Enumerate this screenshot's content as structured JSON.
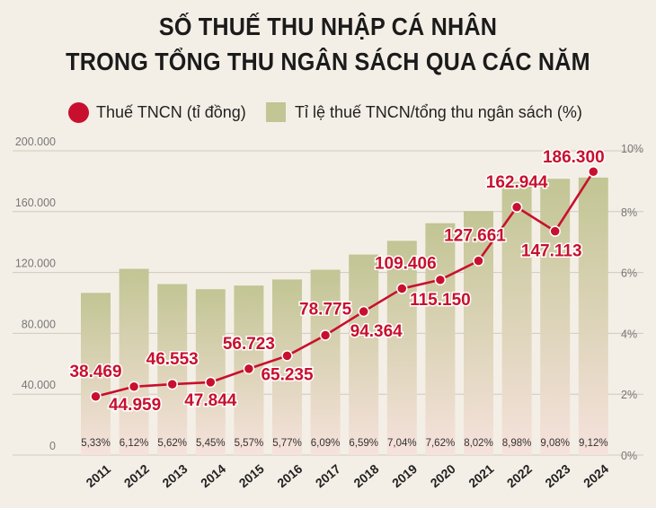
{
  "title": {
    "line1": "SỐ THUẾ THU NHẬP CÁ NHÂN",
    "line2": "TRONG TỔNG THU NGÂN SÁCH QUA CÁC NĂM"
  },
  "legend": {
    "tax": "Thuế TNCN (tỉ đồng)",
    "ratio": "Tỉ lệ thuế TNCN/tổng thu ngân sách (%)"
  },
  "colors": {
    "line": "#c8102e",
    "bar_top": "#c2c594",
    "bar_bottom": "#f6e2dc",
    "value_label": "#c8102e"
  },
  "chart_data": {
    "type": "bar+line",
    "categories": [
      "2011",
      "2012",
      "2013",
      "2014",
      "2015",
      "2016",
      "2017",
      "2018",
      "2019",
      "2020",
      "2021",
      "2022",
      "2023",
      "2024"
    ],
    "series": [
      {
        "name": "Thuế TNCN (tỉ đồng)",
        "type": "line",
        "axis": "left",
        "values": [
          38469,
          44959,
          46553,
          47844,
          56723,
          65235,
          78775,
          94364,
          109406,
          115150,
          127661,
          162944,
          147113,
          186300
        ],
        "labels": [
          "38.469",
          "44.959",
          "46.553",
          "47.844",
          "56.723",
          "65.235",
          "78.775",
          "94.364",
          "109.406",
          "115.150",
          "127.661",
          "162.944",
          "147.113",
          "186.300"
        ]
      },
      {
        "name": "Tỉ lệ thuế TNCN/tổng thu ngân sách (%)",
        "type": "bar",
        "axis": "right",
        "values": [
          5.33,
          6.12,
          5.62,
          5.45,
          5.57,
          5.77,
          6.09,
          6.59,
          7.04,
          7.62,
          8.02,
          8.98,
          9.08,
          9.12
        ],
        "labels": [
          "5,33%",
          "6,12%",
          "5,62%",
          "5,45%",
          "5,57%",
          "5,77%",
          "6,09%",
          "6,59%",
          "7,04%",
          "7,62%",
          "8,02%",
          "8,98%",
          "9,08%",
          "9,12%"
        ]
      }
    ],
    "y_left": {
      "ylim": [
        0,
        200000
      ],
      "ticks": [
        0,
        40000,
        80000,
        120000,
        160000,
        200000
      ],
      "tick_labels": [
        "0",
        "40.000",
        "80.000",
        "120.000",
        "160.000",
        "200.000"
      ]
    },
    "y_right": {
      "ylim": [
        0,
        10
      ],
      "ticks": [
        0,
        2,
        4,
        6,
        8,
        10
      ],
      "tick_labels": [
        "0%",
        "2%",
        "4%",
        "6%",
        "8%",
        "10%"
      ]
    },
    "grid": true,
    "legend_position": "top"
  }
}
